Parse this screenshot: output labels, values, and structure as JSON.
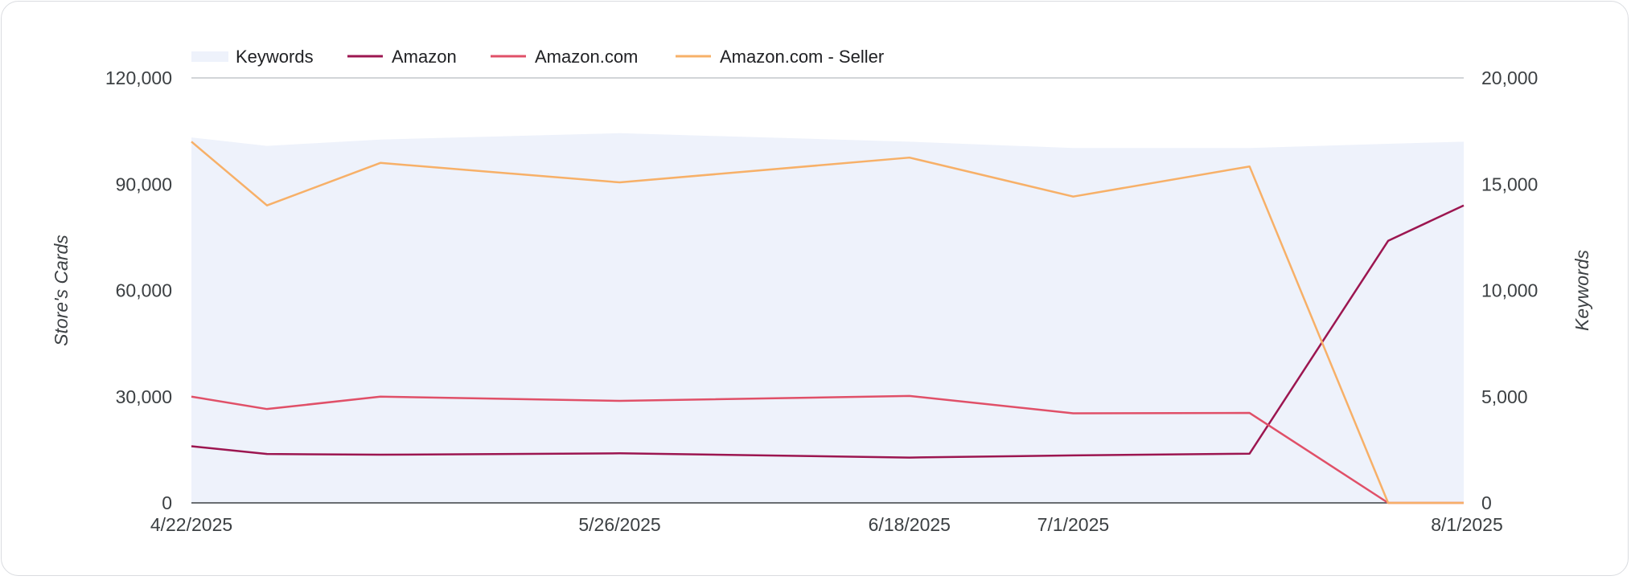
{
  "chart_data": {
    "type": "line",
    "x": [
      "4/22/2025",
      "4/28/2025",
      "5/7/2025",
      "5/26/2025",
      "6/18/2025",
      "7/1/2025",
      "7/15/2025",
      "7/26/2025",
      "8/1/2025"
    ],
    "x_tick_labels": [
      "4/22/2025",
      "5/26/2025",
      "6/18/2025",
      "7/1/2025",
      "8/1/2025"
    ],
    "series": [
      {
        "name": "Keywords",
        "kind": "area",
        "axis": "right",
        "color": "#eef2fb",
        "values": [
          17200,
          16800,
          17100,
          17400,
          17000,
          16700,
          16700,
          16900,
          17000
        ]
      },
      {
        "name": "Amazon",
        "kind": "line",
        "axis": "left",
        "color": "#9c1650",
        "values": [
          16000,
          13800,
          13600,
          14000,
          12800,
          13400,
          13900,
          74000,
          84000
        ]
      },
      {
        "name": "Amazon.com",
        "kind": "line",
        "axis": "left",
        "color": "#e05068",
        "values": [
          30000,
          26500,
          30000,
          28800,
          30200,
          25300,
          25400,
          0,
          0
        ]
      },
      {
        "name": "Amazon.com - Seller",
        "kind": "line",
        "axis": "left",
        "color": "#f7b068",
        "values": [
          102000,
          84000,
          96000,
          90500,
          97500,
          86500,
          95000,
          0,
          0
        ]
      }
    ],
    "y_left": {
      "label": "Store's Cards",
      "ylim": [
        0,
        120000
      ],
      "ticks": [
        "0",
        "30,000",
        "60,000",
        "90,000",
        "120,000"
      ]
    },
    "y_right": {
      "label": "Keywords",
      "ylim": [
        0,
        20000
      ],
      "ticks": [
        "0",
        "5,000",
        "10,000",
        "15,000",
        "20,000"
      ]
    },
    "legend": "top-left",
    "grid": false
  }
}
